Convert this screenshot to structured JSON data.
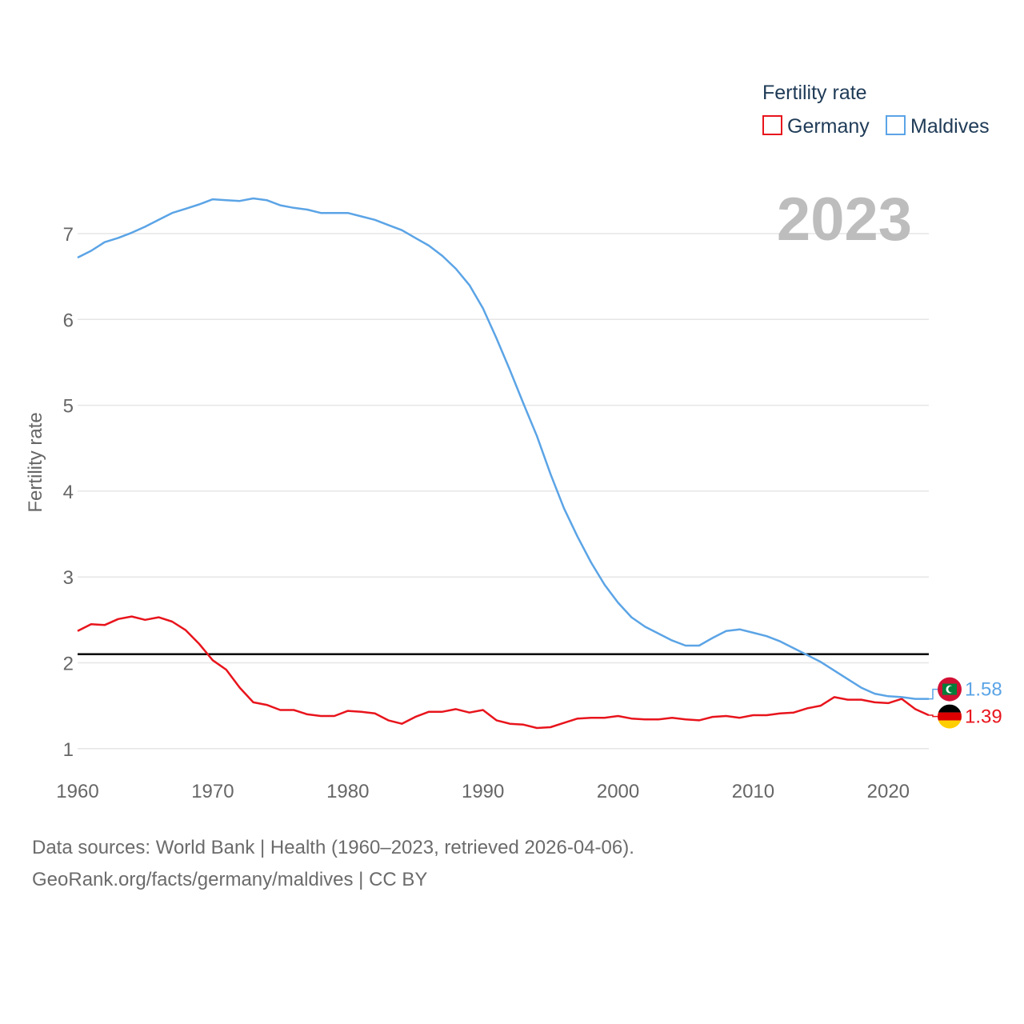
{
  "chart_data": {
    "type": "line",
    "title": "Fertility rate",
    "legend_title": "Fertility rate",
    "legend_position": "top-right",
    "ylabel": "Fertility rate",
    "xlabel": "",
    "xlim": [
      1960,
      2023
    ],
    "ylim": [
      0.7,
      7.6
    ],
    "x_ticks": [
      1960,
      1970,
      1980,
      1990,
      2000,
      2010,
      2020
    ],
    "y_ticks": [
      1,
      2,
      3,
      4,
      5,
      6,
      7
    ],
    "grid": true,
    "year_label": "2023",
    "reference_line": {
      "value": 2.1,
      "color": "#000000"
    },
    "x": [
      1960,
      1961,
      1962,
      1963,
      1964,
      1965,
      1966,
      1967,
      1968,
      1969,
      1970,
      1971,
      1972,
      1973,
      1974,
      1975,
      1976,
      1977,
      1978,
      1979,
      1980,
      1981,
      1982,
      1983,
      1984,
      1985,
      1986,
      1987,
      1988,
      1989,
      1990,
      1991,
      1992,
      1993,
      1994,
      1995,
      1996,
      1997,
      1998,
      1999,
      2000,
      2001,
      2002,
      2003,
      2004,
      2005,
      2006,
      2007,
      2008,
      2009,
      2010,
      2011,
      2012,
      2013,
      2014,
      2015,
      2016,
      2017,
      2018,
      2019,
      2020,
      2021,
      2022,
      2023
    ],
    "series": [
      {
        "name": "Germany",
        "color": "#e8141c",
        "end_label": "1.39",
        "values": [
          2.37,
          2.45,
          2.44,
          2.51,
          2.54,
          2.5,
          2.53,
          2.48,
          2.38,
          2.22,
          2.03,
          1.92,
          1.71,
          1.54,
          1.51,
          1.45,
          1.45,
          1.4,
          1.38,
          1.38,
          1.44,
          1.43,
          1.41,
          1.33,
          1.29,
          1.37,
          1.43,
          1.43,
          1.46,
          1.42,
          1.45,
          1.33,
          1.29,
          1.28,
          1.24,
          1.25,
          1.3,
          1.35,
          1.36,
          1.36,
          1.38,
          1.35,
          1.34,
          1.34,
          1.36,
          1.34,
          1.33,
          1.37,
          1.38,
          1.36,
          1.39,
          1.39,
          1.41,
          1.42,
          1.47,
          1.5,
          1.6,
          1.57,
          1.57,
          1.54,
          1.53,
          1.58,
          1.46,
          1.39
        ]
      },
      {
        "name": "Maldives",
        "color": "#5ba4e6",
        "end_label": "1.58",
        "values": [
          6.72,
          6.8,
          6.9,
          6.95,
          7.01,
          7.08,
          7.16,
          7.24,
          7.29,
          7.34,
          7.4,
          7.39,
          7.38,
          7.41,
          7.39,
          7.33,
          7.3,
          7.28,
          7.24,
          7.24,
          7.24,
          7.2,
          7.16,
          7.1,
          7.04,
          6.95,
          6.86,
          6.74,
          6.59,
          6.4,
          6.13,
          5.78,
          5.41,
          5.02,
          4.64,
          4.2,
          3.8,
          3.47,
          3.17,
          2.91,
          2.7,
          2.53,
          2.42,
          2.34,
          2.26,
          2.2,
          2.2,
          2.29,
          2.37,
          2.39,
          2.35,
          2.31,
          2.25,
          2.17,
          2.09,
          2.01,
          1.91,
          1.81,
          1.71,
          1.64,
          1.61,
          1.6,
          1.58,
          1.58
        ]
      }
    ]
  },
  "footer": {
    "line1": "Data sources: World Bank | Health (1960–2023, retrieved 2026-04-06).",
    "line2": "GeoRank.org/facts/germany/maldives | CC BY"
  }
}
